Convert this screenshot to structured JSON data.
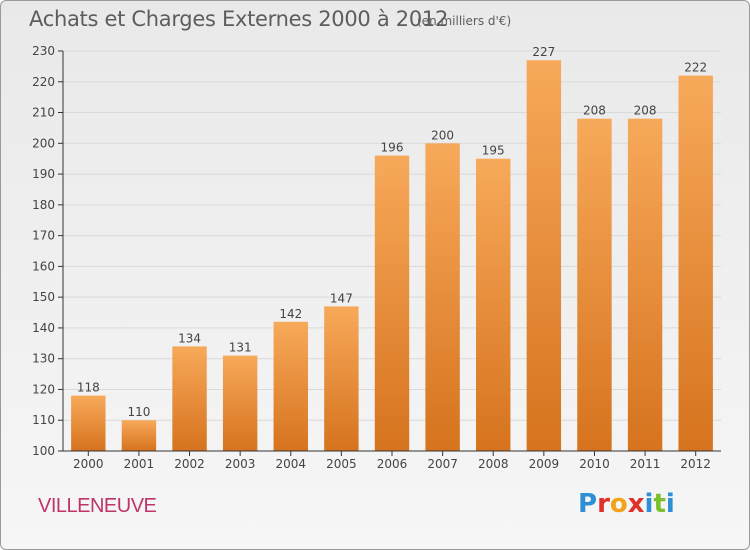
{
  "header": {
    "title": "Achats et Charges Externes 2000 à 2012",
    "subtitle": "(en milliers d'€)"
  },
  "location": "VILLENEUVE",
  "logo": {
    "text": "Proxiti",
    "letters": [
      {
        "ch": "P",
        "color": "#2e8fd6"
      },
      {
        "ch": "r",
        "color": "#e0302a"
      },
      {
        "ch": "o",
        "color": "#f2a31b"
      },
      {
        "ch": "x",
        "color": "#e0302a"
      },
      {
        "ch": "i",
        "color": "#2e8fd6"
      },
      {
        "ch": "t",
        "color": "#7bbf2a"
      },
      {
        "ch": "i",
        "color": "#2e8fd6"
      }
    ]
  },
  "colors": {
    "bar_top": "#f7a95a",
    "bar_bottom": "#d6731e",
    "axis": "#333333",
    "grid": "#d9d9d9"
  },
  "chart_data": {
    "type": "bar",
    "title": "Achats et Charges Externes 2000 à 2012",
    "subtitle": "(en milliers d'€)",
    "categories": [
      "2000",
      "2001",
      "2002",
      "2003",
      "2004",
      "2005",
      "2006",
      "2007",
      "2008",
      "2009",
      "2010",
      "2011",
      "2012"
    ],
    "values": [
      118,
      110,
      134,
      131,
      142,
      147,
      196,
      200,
      195,
      227,
      208,
      208,
      222
    ],
    "ylim": [
      100,
      230
    ],
    "yticks": [
      100,
      110,
      120,
      130,
      140,
      150,
      160,
      170,
      180,
      190,
      200,
      210,
      220,
      230
    ],
    "grid": true
  }
}
